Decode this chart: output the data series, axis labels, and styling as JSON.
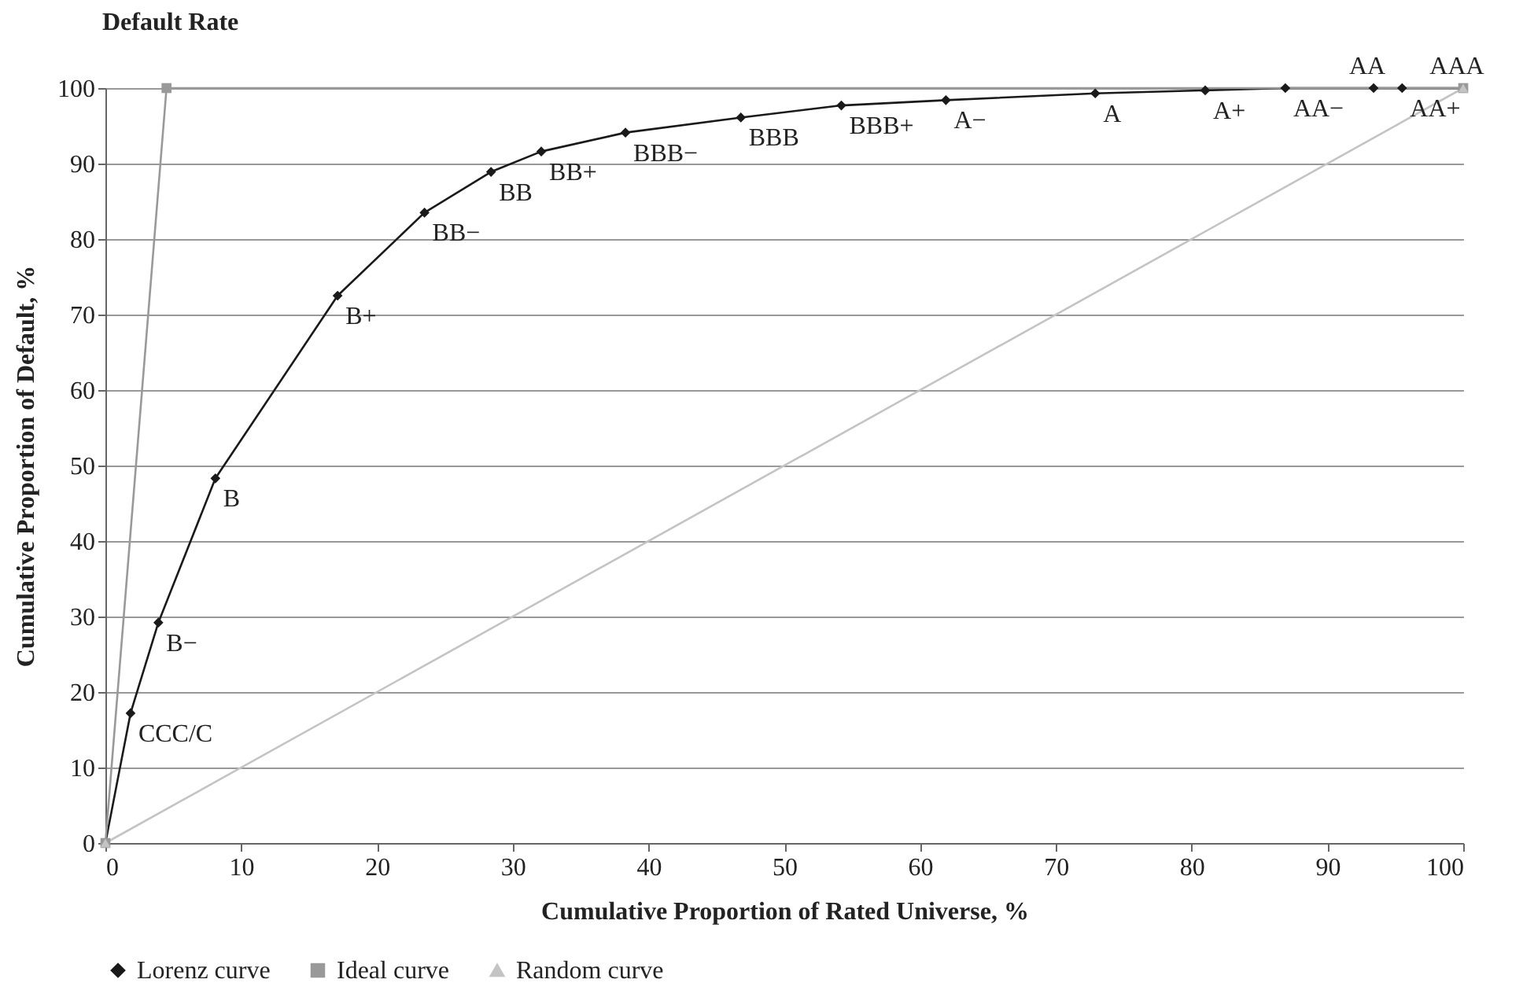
{
  "chart_data": {
    "type": "line",
    "title": "Default Rate",
    "xlabel": "Cumulative Proportion of Rated Universe, %",
    "ylabel": "Cumulative Proportion of Default, %",
    "series": [
      {
        "name": "Lorenz curve",
        "color": "#1a1a1a",
        "marker": "diamond",
        "x": [
          0,
          1.85,
          3.9,
          8.1,
          17.1,
          23.5,
          28.4,
          32.1,
          38.3,
          46.8,
          54.2,
          61.9,
          72.9,
          81.0,
          86.9,
          93.4,
          95.5,
          100
        ],
        "values": [
          0,
          17.2,
          29.2,
          48.3,
          72.5,
          83.5,
          88.9,
          91.6,
          94.1,
          96.1,
          97.7,
          98.4,
          99.3,
          99.7,
          100,
          100,
          100,
          100
        ]
      },
      {
        "name": "Ideal curve",
        "color": "#999999",
        "marker": "square",
        "x": [
          0,
          4.5,
          100
        ],
        "values": [
          0,
          100,
          100
        ]
      },
      {
        "name": "Random curve",
        "color": "#c4c4c4",
        "marker": "triangle",
        "x": [
          0,
          100
        ],
        "values": [
          0,
          100
        ]
      }
    ],
    "annotations": [
      {
        "text": "CCC/C",
        "x": 1.85,
        "y": 17.2
      },
      {
        "text": "B−",
        "x": 3.9,
        "y": 29.2
      },
      {
        "text": "B",
        "x": 8.1,
        "y": 48.3
      },
      {
        "text": "B+",
        "x": 17.1,
        "y": 72.5
      },
      {
        "text": "BB−",
        "x": 23.5,
        "y": 83.5
      },
      {
        "text": "BB",
        "x": 28.4,
        "y": 88.9
      },
      {
        "text": "BB+",
        "x": 32.1,
        "y": 91.6
      },
      {
        "text": "BBB−",
        "x": 38.3,
        "y": 94.1
      },
      {
        "text": "BBB",
        "x": 46.8,
        "y": 96.1
      },
      {
        "text": "BBB+",
        "x": 54.2,
        "y": 97.7
      },
      {
        "text": "A−",
        "x": 61.9,
        "y": 98.4
      },
      {
        "text": "A",
        "x": 72.9,
        "y": 99.3
      },
      {
        "text": "A+",
        "x": 81.0,
        "y": 99.7
      },
      {
        "text": "AA−",
        "x": 86.9,
        "y": 100
      },
      {
        "text": "AA",
        "x": 93.4,
        "y": 100
      },
      {
        "text": "AA+",
        "x": 95.5,
        "y": 100
      },
      {
        "text": "AAA",
        "x": 100,
        "y": 100
      }
    ],
    "xlim": [
      0,
      100
    ],
    "xticks": [
      0,
      10,
      20,
      30,
      40,
      50,
      60,
      70,
      80,
      90,
      100
    ],
    "ylim": [
      0,
      100
    ],
    "yticks": [
      0,
      10,
      20,
      30,
      40,
      50,
      60,
      70,
      80,
      90,
      100
    ],
    "grid": "y",
    "legend": "bottom",
    "line_style": "solid"
  }
}
